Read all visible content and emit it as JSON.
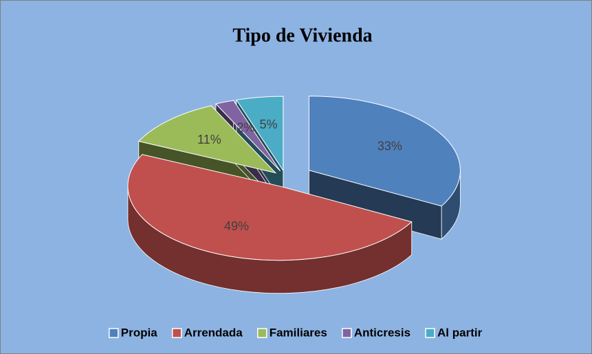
{
  "chart_data": {
    "type": "pie3d",
    "title": "Tipo de Vivienda",
    "categories": [
      "Propia",
      "Arrendada",
      "Familiares",
      "Anticresis",
      "Al partir"
    ],
    "values": [
      33,
      49,
      11,
      2,
      5
    ],
    "value_labels": [
      "33%",
      "49%",
      "11%",
      "2%",
      "5%"
    ],
    "colors": [
      "#4f81bd",
      "#c0504d",
      "#9bbb59",
      "#8064a2",
      "#4bacc6"
    ],
    "legend": "bottom"
  }
}
